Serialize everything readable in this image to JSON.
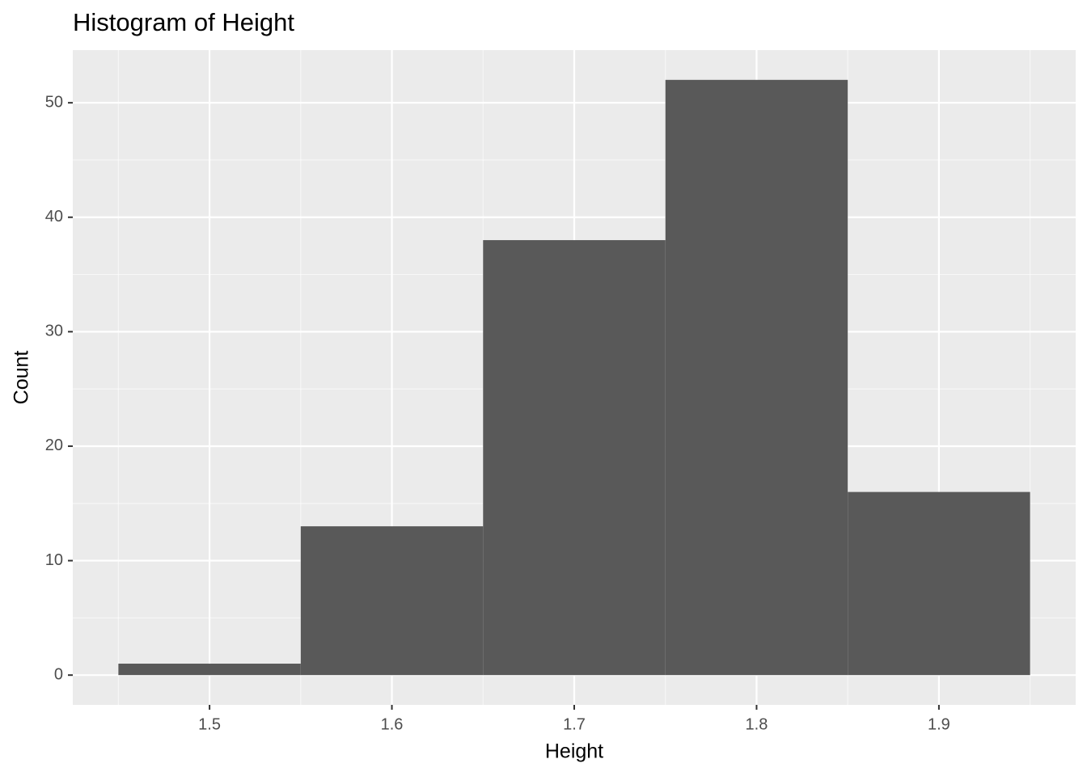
{
  "chart_data": {
    "type": "histogram",
    "title": "Histogram of Height",
    "x_label": "Height",
    "y_label": "Count",
    "bins": [
      1.45,
      1.55,
      1.65,
      1.75,
      1.85,
      1.95
    ],
    "values": [
      1,
      13,
      38,
      52,
      16
    ],
    "color": "#595959",
    "xlim": [
      1.425,
      1.975
    ],
    "xticks": [
      1.5,
      1.6,
      1.7,
      1.8,
      1.9
    ],
    "ylim": [
      -2.6,
      54.6
    ],
    "yticks": [
      0,
      10,
      20,
      30,
      40,
      50
    ],
    "grid": true,
    "minor_grid": true
  }
}
